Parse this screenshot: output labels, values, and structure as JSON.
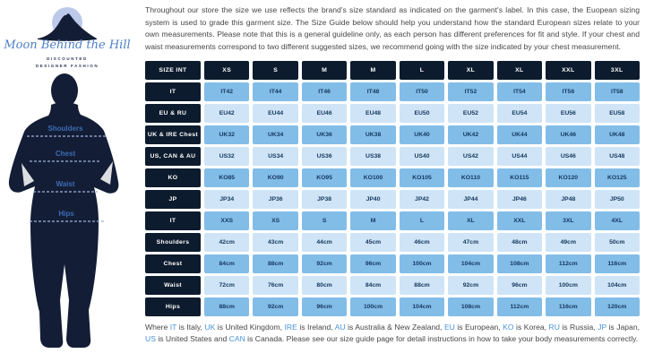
{
  "colors": {
    "header_navy": "#0d1b2e",
    "cell_medium_blue": "#82bde8",
    "cell_light_blue": "#cfe4f6",
    "cell_text_navy": "#14375e",
    "accent_blue": "#4b94d8",
    "silhouette_navy": "#131d35",
    "moon_blue": "#bcc9ea",
    "logo_script_blue": "#4d7fc3",
    "body_text_gray": "#474747"
  },
  "logo": {
    "brand": "Moon Behind the Hill",
    "tagline": [
      "DISCOUNTED",
      "DESIGNER FASHION"
    ]
  },
  "figure_labels": [
    "Shoulders",
    "Chest",
    "Waist",
    "Hips"
  ],
  "intro": "Throughout our store the size we use reflects the brand's size standard as indicated on the garment's label. In this case, the Euopean sizing system is used to grade this garment size. The Size Guide below should help you understand how the standard European sizes relate to your own measurements. Please note that this is a general guideline only, as each person has different preferences for fit and style. If your chest and waist measurements correspond to two different suggested sizes, we recommend going with the size indicated by your chest measurement.",
  "size_table": {
    "header": [
      "SIZE INT",
      "XS",
      "S",
      "M",
      "M",
      "L",
      "XL",
      "XL",
      "XXL",
      "3XL"
    ],
    "rows": [
      {
        "label": "IT",
        "values": [
          "IT42",
          "IT44",
          "IT46",
          "IT48",
          "IT50",
          "IT52",
          "IT54",
          "IT56",
          "IT58"
        ]
      },
      {
        "label": "EU & RU",
        "values": [
          "EU42",
          "EU44",
          "EU46",
          "EU48",
          "EU50",
          "EU52",
          "EU54",
          "EU56",
          "EU58"
        ]
      },
      {
        "label": "UK & IRE Chest",
        "values": [
          "UK32",
          "UK34",
          "UK36",
          "UK38",
          "UK40",
          "UK42",
          "UK44",
          "UK46",
          "UK48"
        ]
      },
      {
        "label": "US, CAN & AU",
        "values": [
          "US32",
          "US34",
          "US36",
          "US38",
          "US40",
          "US42",
          "US44",
          "US46",
          "US48"
        ]
      },
      {
        "label": "KO",
        "values": [
          "KO85",
          "KO90",
          "KO95",
          "KO100",
          "KO105",
          "KO110",
          "KO115",
          "KO120",
          "KO125"
        ]
      },
      {
        "label": "JP",
        "values": [
          "JP34",
          "JP36",
          "JP38",
          "JP40",
          "JP42",
          "JP44",
          "JP46",
          "JP48",
          "JP50"
        ]
      },
      {
        "label": "IT",
        "values": [
          "XXS",
          "XS",
          "S",
          "M",
          "L",
          "XL",
          "XXL",
          "3XL",
          "4XL"
        ]
      },
      {
        "label": "Shoulders",
        "values": [
          "42cm",
          "43cm",
          "44cm",
          "45cm",
          "46cm",
          "47cm",
          "48cm",
          "49cm",
          "50cm"
        ]
      },
      {
        "label": "Chest",
        "values": [
          "84cm",
          "88cm",
          "92cm",
          "96cm",
          "100cm",
          "104cm",
          "108cm",
          "112cm",
          "116cm"
        ]
      },
      {
        "label": "Waist",
        "values": [
          "72cm",
          "76cm",
          "80cm",
          "84cm",
          "88cm",
          "92cm",
          "96cm",
          "100cm",
          "104cm"
        ]
      },
      {
        "label": "Hips",
        "values": [
          "88cm",
          "92cm",
          "96cm",
          "100cm",
          "104cm",
          "108cm",
          "112cm",
          "116cm",
          "120cm"
        ]
      }
    ]
  },
  "footnote_segments": [
    {
      "text": "Where ",
      "hl": false
    },
    {
      "text": "IT",
      "hl": true
    },
    {
      "text": " is Italy, ",
      "hl": false
    },
    {
      "text": "UK",
      "hl": true
    },
    {
      "text": " is United Kingdom, ",
      "hl": false
    },
    {
      "text": "IRE",
      "hl": true
    },
    {
      "text": " is Ireland, ",
      "hl": false
    },
    {
      "text": "AU",
      "hl": true
    },
    {
      "text": " is Australia & New Zealand, ",
      "hl": false
    },
    {
      "text": "EU",
      "hl": true
    },
    {
      "text": " is European, ",
      "hl": false
    },
    {
      "text": "KO",
      "hl": true
    },
    {
      "text": " is Korea, ",
      "hl": false
    },
    {
      "text": "RU",
      "hl": true
    },
    {
      "text": " is Russia, ",
      "hl": false
    },
    {
      "text": "JP",
      "hl": true
    },
    {
      "text": " is Japan, ",
      "hl": false
    },
    {
      "text": "US",
      "hl": true
    },
    {
      "text": " is United States and ",
      "hl": false
    },
    {
      "text": "CAN",
      "hl": true
    },
    {
      "text": " is Canada. Please see our size guide page for detail instructions in how to take your body measurements correctly.",
      "hl": false
    }
  ]
}
